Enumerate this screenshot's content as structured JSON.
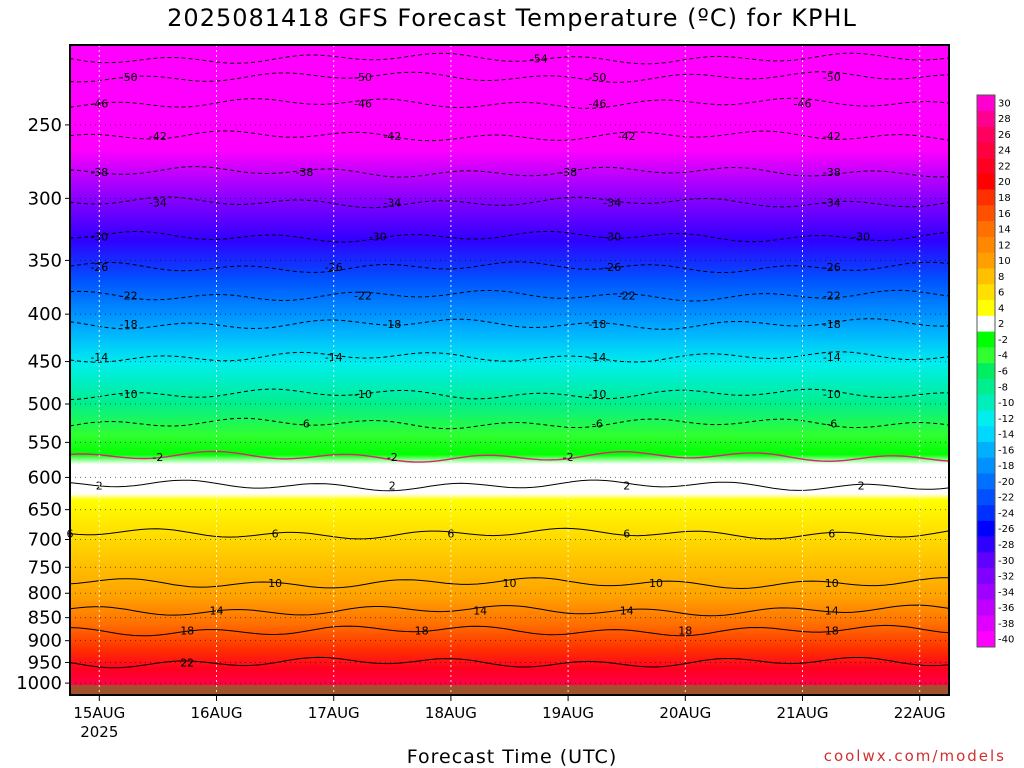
{
  "title": "2025081418 GFS Forecast Temperature (ºC) for KPHL",
  "xlabel": "Forecast Time (UTC)",
  "credit": "coolwx.com/models",
  "chart_data": {
    "type": "heatmap",
    "title": "2025081418 GFS Forecast Temperature (ºC) for KPHL",
    "xlabel": "Forecast Time (UTC)",
    "ylabel": "",
    "y_axis": "pressure (hPa), log scale, decreasing upward",
    "ylim": [
      1030,
      205
    ],
    "xlim": [
      "2025-08-14T18Z",
      "2025-08-22T06Z"
    ],
    "y_ticks": [
      250,
      300,
      350,
      400,
      450,
      500,
      550,
      600,
      650,
      700,
      750,
      800,
      850,
      900,
      950,
      1000
    ],
    "x_ticks": [
      {
        "date": "2025-08-15",
        "label": "15AUG",
        "sublabel": "2025"
      },
      {
        "date": "2025-08-16",
        "label": "16AUG",
        "sublabel": ""
      },
      {
        "date": "2025-08-17",
        "label": "17AUG",
        "sublabel": ""
      },
      {
        "date": "2025-08-18",
        "label": "18AUG",
        "sublabel": ""
      },
      {
        "date": "2025-08-19",
        "label": "19AUG",
        "sublabel": ""
      },
      {
        "date": "2025-08-20",
        "label": "20AUG",
        "sublabel": ""
      },
      {
        "date": "2025-08-21",
        "label": "21AUG",
        "sublabel": ""
      },
      {
        "date": "2025-08-22",
        "label": "22AUG",
        "sublabel": ""
      }
    ],
    "grid": true,
    "ground_color": "#a0522d",
    "colorbar": {
      "labels": [
        30,
        28,
        26,
        24,
        22,
        20,
        18,
        16,
        14,
        12,
        10,
        8,
        6,
        4,
        2,
        -2,
        -4,
        -6,
        -8,
        -10,
        -12,
        -14,
        -16,
        -18,
        -20,
        -22,
        -24,
        -26,
        -28,
        -30,
        -32,
        -34,
        -36,
        -38,
        -40
      ],
      "colors": [
        "#ff00d0",
        "#ff0090",
        "#ff0060",
        "#ff0040",
        "#ff0020",
        "#ff0000",
        "#ff3000",
        "#ff5000",
        "#ff7000",
        "#ff8800",
        "#ffa000",
        "#ffc000",
        "#ffe000",
        "#ffff00",
        "#ffffff",
        "#00ff00",
        "#30ff30",
        "#00ee60",
        "#00ee90",
        "#00eebb",
        "#00eeee",
        "#00d8ff",
        "#00b0ff",
        "#0090ff",
        "#0070ff",
        "#0050ff",
        "#0030ff",
        "#0000ff",
        "#3000ff",
        "#6000ff",
        "#8000ff",
        "#a000ff",
        "#c000ff",
        "#e000ff",
        "#ff00ff"
      ]
    },
    "isotherms": [
      {
        "value": -54,
        "pressure": 212,
        "labels": [
          {
            "date": "2025-08-18T18Z",
            "text": "-54"
          }
        ]
      },
      {
        "value": -50,
        "pressure": 222,
        "labels": [
          {
            "date": "2025-08-15T06Z",
            "text": "-50"
          },
          {
            "date": "2025-08-17T06Z",
            "text": "-50"
          },
          {
            "date": "2025-08-19T06Z",
            "text": "-50"
          },
          {
            "date": "2025-08-21T06Z",
            "text": "-50"
          }
        ]
      },
      {
        "value": -46,
        "pressure": 237,
        "labels": [
          {
            "date": "2025-08-15T00Z",
            "text": "-46"
          },
          {
            "date": "2025-08-17T06Z",
            "text": "-46"
          },
          {
            "date": "2025-08-19T06Z",
            "text": "-46"
          },
          {
            "date": "2025-08-21T00Z",
            "text": "-46"
          }
        ]
      },
      {
        "value": -42,
        "pressure": 257,
        "labels": [
          {
            "date": "2025-08-15T12Z",
            "text": "-42"
          },
          {
            "date": "2025-08-17T12Z",
            "text": "-42"
          },
          {
            "date": "2025-08-19T12Z",
            "text": "-42"
          },
          {
            "date": "2025-08-21T06Z",
            "text": "-42"
          }
        ]
      },
      {
        "value": -38,
        "pressure": 281,
        "labels": [
          {
            "date": "2025-08-15T00Z",
            "text": "-38"
          },
          {
            "date": "2025-08-16T18Z",
            "text": "-38"
          },
          {
            "date": "2025-08-19T00Z",
            "text": "-38"
          },
          {
            "date": "2025-08-21T06Z",
            "text": "-38"
          }
        ]
      },
      {
        "value": -34,
        "pressure": 303,
        "labels": [
          {
            "date": "2025-08-15T12Z",
            "text": "-34"
          },
          {
            "date": "2025-08-17T12Z",
            "text": "-34"
          },
          {
            "date": "2025-08-19T09Z",
            "text": "-34"
          },
          {
            "date": "2025-08-21T06Z",
            "text": "-34"
          }
        ]
      },
      {
        "value": -30,
        "pressure": 330,
        "labels": [
          {
            "date": "2025-08-15T00Z",
            "text": "-30"
          },
          {
            "date": "2025-08-17T09Z",
            "text": "-30"
          },
          {
            "date": "2025-08-19T09Z",
            "text": "-30"
          },
          {
            "date": "2025-08-21T12Z",
            "text": "-30"
          }
        ]
      },
      {
        "value": -26,
        "pressure": 356,
        "labels": [
          {
            "date": "2025-08-15T00Z",
            "text": "-26"
          },
          {
            "date": "2025-08-17T00Z",
            "text": "-26"
          },
          {
            "date": "2025-08-19T09Z",
            "text": "-26"
          },
          {
            "date": "2025-08-21T06Z",
            "text": "-26"
          }
        ]
      },
      {
        "value": -22,
        "pressure": 382,
        "labels": [
          {
            "date": "2025-08-15T06Z",
            "text": "-22"
          },
          {
            "date": "2025-08-17T06Z",
            "text": "-22"
          },
          {
            "date": "2025-08-19T12Z",
            "text": "-22"
          },
          {
            "date": "2025-08-21T06Z",
            "text": "-22"
          }
        ]
      },
      {
        "value": -18,
        "pressure": 410,
        "labels": [
          {
            "date": "2025-08-15T06Z",
            "text": "-18"
          },
          {
            "date": "2025-08-17T12Z",
            "text": "-18"
          },
          {
            "date": "2025-08-19T06Z",
            "text": "-18"
          },
          {
            "date": "2025-08-21T06Z",
            "text": "-18"
          }
        ]
      },
      {
        "value": -14,
        "pressure": 445,
        "labels": [
          {
            "date": "2025-08-15T00Z",
            "text": "-14"
          },
          {
            "date": "2025-08-17T00Z",
            "text": "-14"
          },
          {
            "date": "2025-08-19T06Z",
            "text": "-14"
          },
          {
            "date": "2025-08-21T06Z",
            "text": "-14"
          }
        ]
      },
      {
        "value": -10,
        "pressure": 488,
        "labels": [
          {
            "date": "2025-08-15T06Z",
            "text": "-10"
          },
          {
            "date": "2025-08-17T06Z",
            "text": "-10"
          },
          {
            "date": "2025-08-19T06Z",
            "text": "-10"
          },
          {
            "date": "2025-08-21T06Z",
            "text": "-10"
          }
        ]
      },
      {
        "value": -6,
        "pressure": 525,
        "labels": [
          {
            "date": "2025-08-16T18Z",
            "text": "-6"
          },
          {
            "date": "2025-08-19T06Z",
            "text": "-6"
          },
          {
            "date": "2025-08-21T06Z",
            "text": "-6"
          }
        ]
      },
      {
        "value": -2,
        "pressure": 570,
        "labels": [
          {
            "date": "2025-08-15T12Z",
            "text": "-2"
          },
          {
            "date": "2025-08-17T12Z",
            "text": "-2"
          },
          {
            "date": "2025-08-19T00Z",
            "text": "-2"
          }
        ]
      },
      {
        "value": 2,
        "pressure": 612,
        "labels": [
          {
            "date": "2025-08-15T00Z",
            "text": "2"
          },
          {
            "date": "2025-08-17T12Z",
            "text": "2"
          },
          {
            "date": "2025-08-19T12Z",
            "text": "2"
          },
          {
            "date": "2025-08-21T12Z",
            "text": "2"
          }
        ]
      },
      {
        "value": 6,
        "pressure": 690,
        "labels": [
          {
            "date": "2025-08-14T18Z",
            "text": "6"
          },
          {
            "date": "2025-08-16T12Z",
            "text": "6"
          },
          {
            "date": "2025-08-18T00Z",
            "text": "6"
          },
          {
            "date": "2025-08-19T12Z",
            "text": "6"
          },
          {
            "date": "2025-08-21T06Z",
            "text": "6"
          }
        ]
      },
      {
        "value": 10,
        "pressure": 780,
        "labels": [
          {
            "date": "2025-08-16T12Z",
            "text": "10"
          },
          {
            "date": "2025-08-18T12Z",
            "text": "10"
          },
          {
            "date": "2025-08-19T18Z",
            "text": "10"
          },
          {
            "date": "2025-08-21T06Z",
            "text": "10"
          }
        ]
      },
      {
        "value": 14,
        "pressure": 835,
        "labels": [
          {
            "date": "2025-08-16T00Z",
            "text": "14"
          },
          {
            "date": "2025-08-18T06Z",
            "text": "14"
          },
          {
            "date": "2025-08-19T12Z",
            "text": "14"
          },
          {
            "date": "2025-08-21T06Z",
            "text": "14"
          }
        ]
      },
      {
        "value": 18,
        "pressure": 878,
        "labels": [
          {
            "date": "2025-08-15T18Z",
            "text": "18"
          },
          {
            "date": "2025-08-17T18Z",
            "text": "18"
          },
          {
            "date": "2025-08-20T00Z",
            "text": "18"
          },
          {
            "date": "2025-08-21T06Z",
            "text": "18"
          }
        ]
      },
      {
        "value": 22,
        "pressure": 950,
        "labels": [
          {
            "date": "2025-08-15T18Z",
            "text": "22"
          }
        ]
      }
    ]
  }
}
